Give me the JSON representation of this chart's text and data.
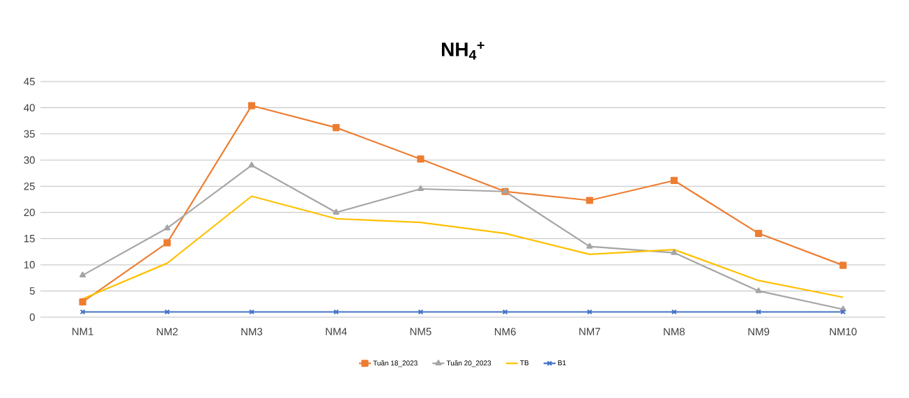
{
  "chart_data": {
    "type": "line",
    "title": "NH$_{4}$$^{+}$",
    "categories": [
      "NM1",
      "NM2",
      "NM3",
      "NM4",
      "NM5",
      "NM6",
      "NM7",
      "NM8",
      "NM9",
      "NM10"
    ],
    "series": [
      {
        "name": "Tuần 18_2023",
        "color": "#ed7d31",
        "marker": "square",
        "values": [
          2.9,
          14.2,
          40.4,
          36.2,
          30.2,
          24.0,
          22.3,
          26.1,
          16.0,
          9.9
        ]
      },
      {
        "name": "Tuần 20_2023",
        "color": "#a5a5a5",
        "marker": "triangle",
        "values": [
          8.0,
          17.0,
          29.0,
          20.0,
          24.5,
          24.0,
          13.5,
          12.3,
          5.0,
          1.5
        ]
      },
      {
        "name": "TB",
        "color": "#ffc000",
        "marker": "none",
        "values": [
          3.5,
          10.3,
          23.1,
          18.8,
          18.1,
          16.0,
          12.0,
          12.9,
          7.0,
          3.8
        ]
      },
      {
        "name": "B1",
        "color": "#4472c4",
        "marker": "cross",
        "values": [
          1,
          1,
          1,
          1,
          1,
          1,
          1,
          1,
          1,
          1
        ]
      }
    ],
    "ylim": [
      0,
      45
    ],
    "yticks": [
      0,
      5,
      10,
      15,
      20,
      25,
      30,
      35,
      40,
      45
    ],
    "grid": "y",
    "legend": "bottom",
    "line_style": "solid"
  }
}
